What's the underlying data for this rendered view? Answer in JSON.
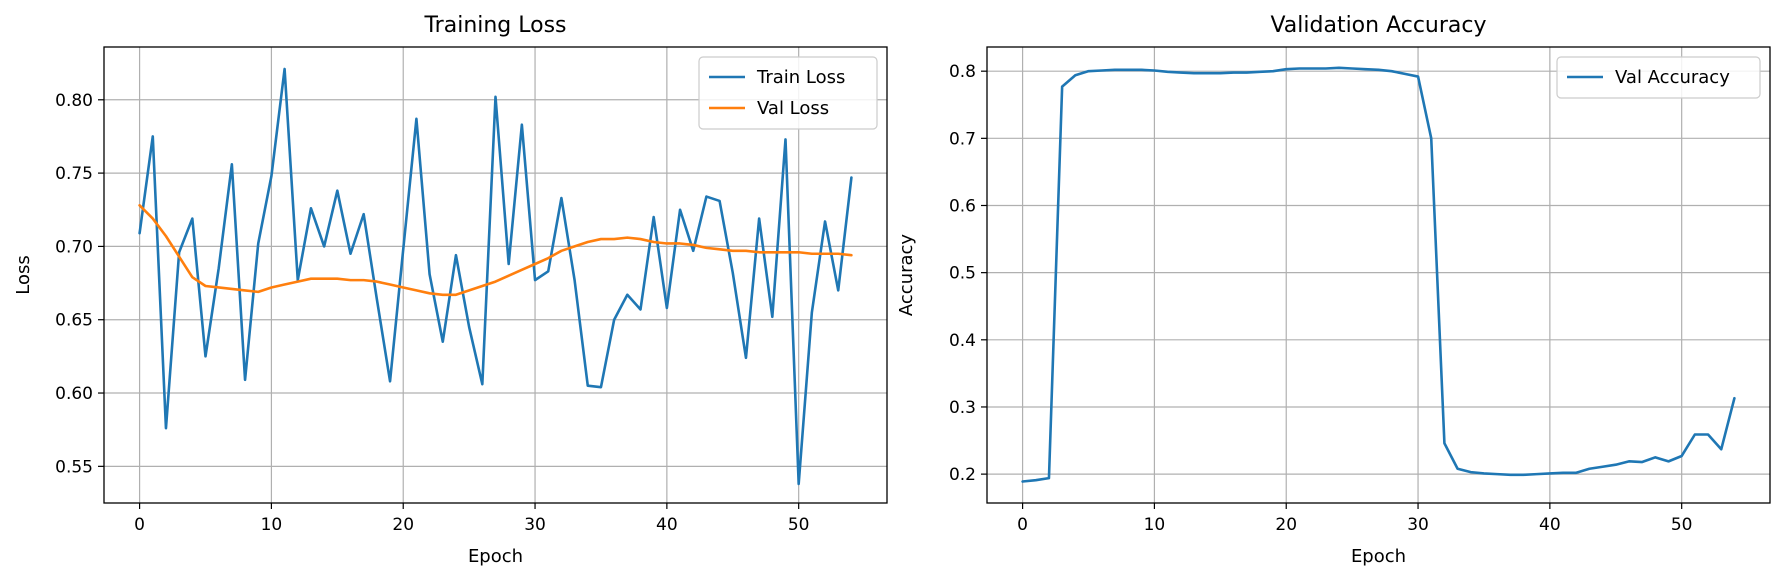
{
  "colors": {
    "train": "#1f77b4",
    "val": "#ff7f0e",
    "grid": "#b0b0b0"
  },
  "chart_data": [
    {
      "type": "line",
      "title": "Training Loss",
      "xlabel": "Epoch",
      "ylabel": "Loss",
      "xlim": [
        -2.7,
        56.7
      ],
      "ylim": [
        0.525,
        0.836
      ],
      "xticks": [
        0,
        10,
        20,
        30,
        40,
        50
      ],
      "yticks": [
        0.55,
        0.6,
        0.65,
        0.7,
        0.75,
        0.8
      ],
      "ytick_labels": [
        "0.55",
        "0.60",
        "0.65",
        "0.70",
        "0.75",
        "0.80"
      ],
      "grid": true,
      "legend": "upper right",
      "series": [
        {
          "name": "Train Loss",
          "x": [
            0,
            1,
            2,
            3,
            4,
            5,
            6,
            7,
            8,
            9,
            10,
            11,
            12,
            13,
            14,
            15,
            16,
            17,
            18,
            19,
            20,
            21,
            22,
            23,
            24,
            25,
            26,
            27,
            28,
            29,
            30,
            31,
            32,
            33,
            34,
            35,
            36,
            37,
            38,
            39,
            40,
            41,
            42,
            43,
            44,
            45,
            46,
            47,
            48,
            49,
            50,
            51,
            52,
            53,
            54
          ],
          "y": [
            0.709,
            0.775,
            0.576,
            0.696,
            0.719,
            0.625,
            0.685,
            0.756,
            0.609,
            0.702,
            0.748,
            0.821,
            0.677,
            0.726,
            0.7,
            0.738,
            0.695,
            0.722,
            0.664,
            0.608,
            0.698,
            0.787,
            0.681,
            0.635,
            0.694,
            0.645,
            0.606,
            0.802,
            0.688,
            0.783,
            0.677,
            0.683,
            0.733,
            0.677,
            0.605,
            0.604,
            0.65,
            0.667,
            0.657,
            0.72,
            0.658,
            0.725,
            0.697,
            0.734,
            0.731,
            0.682,
            0.624,
            0.719,
            0.652,
            0.773,
            0.538,
            0.655,
            0.717,
            0.67,
            0.747
          ]
        },
        {
          "name": "Val Loss",
          "x": [
            0,
            1,
            2,
            3,
            4,
            5,
            6,
            7,
            8,
            9,
            10,
            11,
            12,
            13,
            14,
            15,
            16,
            17,
            18,
            19,
            20,
            21,
            22,
            23,
            24,
            25,
            26,
            27,
            28,
            29,
            30,
            31,
            32,
            33,
            34,
            35,
            36,
            37,
            38,
            39,
            40,
            41,
            42,
            43,
            44,
            45,
            46,
            47,
            48,
            49,
            50,
            51,
            52,
            53,
            54
          ],
          "y": [
            0.728,
            0.719,
            0.707,
            0.693,
            0.679,
            0.673,
            0.672,
            0.671,
            0.67,
            0.669,
            0.672,
            0.674,
            0.676,
            0.678,
            0.678,
            0.678,
            0.677,
            0.677,
            0.676,
            0.674,
            0.672,
            0.67,
            0.668,
            0.667,
            0.667,
            0.67,
            0.673,
            0.676,
            0.68,
            0.684,
            0.688,
            0.692,
            0.697,
            0.7,
            0.703,
            0.705,
            0.705,
            0.706,
            0.705,
            0.703,
            0.702,
            0.702,
            0.701,
            0.699,
            0.698,
            0.697,
            0.697,
            0.696,
            0.696,
            0.696,
            0.696,
            0.695,
            0.695,
            0.695,
            0.694
          ]
        }
      ]
    },
    {
      "type": "line",
      "title": "Validation Accuracy",
      "xlabel": "Epoch",
      "ylabel": "Accuracy",
      "xlim": [
        -2.7,
        56.7
      ],
      "ylim": [
        0.157,
        0.836
      ],
      "xticks": [
        0,
        10,
        20,
        30,
        40,
        50
      ],
      "yticks": [
        0.2,
        0.3,
        0.4,
        0.5,
        0.6,
        0.7,
        0.8
      ],
      "ytick_labels": [
        "0.2",
        "0.3",
        "0.4",
        "0.5",
        "0.6",
        "0.7",
        "0.8"
      ],
      "grid": true,
      "legend": "upper right",
      "series": [
        {
          "name": "Val Accuracy",
          "x": [
            0,
            1,
            2,
            3,
            4,
            5,
            6,
            7,
            8,
            9,
            10,
            11,
            12,
            13,
            14,
            15,
            16,
            17,
            18,
            19,
            20,
            21,
            22,
            23,
            24,
            25,
            26,
            27,
            28,
            29,
            30,
            31,
            32,
            33,
            34,
            35,
            36,
            37,
            38,
            39,
            40,
            41,
            42,
            43,
            44,
            45,
            46,
            47,
            48,
            49,
            50,
            51,
            52,
            53,
            54
          ],
          "y": [
            0.189,
            0.191,
            0.194,
            0.777,
            0.794,
            0.8,
            0.801,
            0.802,
            0.802,
            0.802,
            0.801,
            0.799,
            0.798,
            0.797,
            0.797,
            0.797,
            0.798,
            0.798,
            0.799,
            0.8,
            0.803,
            0.804,
            0.804,
            0.804,
            0.805,
            0.804,
            0.803,
            0.802,
            0.8,
            0.796,
            0.792,
            0.7,
            0.246,
            0.208,
            0.203,
            0.201,
            0.2,
            0.199,
            0.199,
            0.2,
            0.201,
            0.202,
            0.202,
            0.208,
            0.211,
            0.214,
            0.219,
            0.218,
            0.225,
            0.219,
            0.227,
            0.259,
            0.259,
            0.237,
            0.313
          ]
        }
      ]
    }
  ]
}
